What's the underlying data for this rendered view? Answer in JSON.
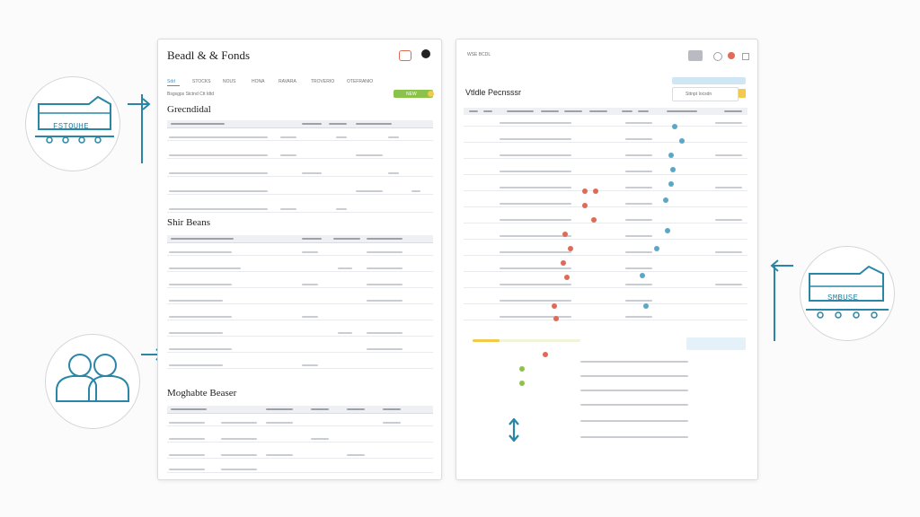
{
  "colors": {
    "accent": "#2a86a6",
    "red": "#e06a55",
    "blue": "#5aa7c8",
    "green": "#8bc34a",
    "yellow": "#f2c94c"
  },
  "badges": [
    {
      "label": "FSTOUHE",
      "icon": "rail-car-icon"
    },
    {
      "label": "",
      "icon": "people-icon"
    },
    {
      "label": "SMBUSE",
      "icon": "rail-car-icon"
    }
  ],
  "left_panel": {
    "title": "Beadl & & Fonds",
    "header_icons": [
      "tag-icon",
      "circle-icon"
    ],
    "tabs": [
      "Sdd",
      "STOCKS",
      "NOUS",
      "HONA",
      "RAVARA",
      "TROVERIO",
      "OTEFRANIO"
    ],
    "subtitle": "Bsgsgps Stctnd  Ctt ldtd",
    "action_label": "NEW",
    "sections": [
      {
        "title": "Grecndidal"
      },
      {
        "title": "Shir Beans"
      },
      {
        "title": "Moghabte Beaser"
      }
    ]
  },
  "right_panel": {
    "top_label": "WSE BCDL",
    "header_icons": [
      "list-icon",
      "gear-icon",
      "alert-icon"
    ],
    "title": "Vtldle Pecnsssr",
    "search_placeholder": "Sttnpt  Iocsdn"
  }
}
